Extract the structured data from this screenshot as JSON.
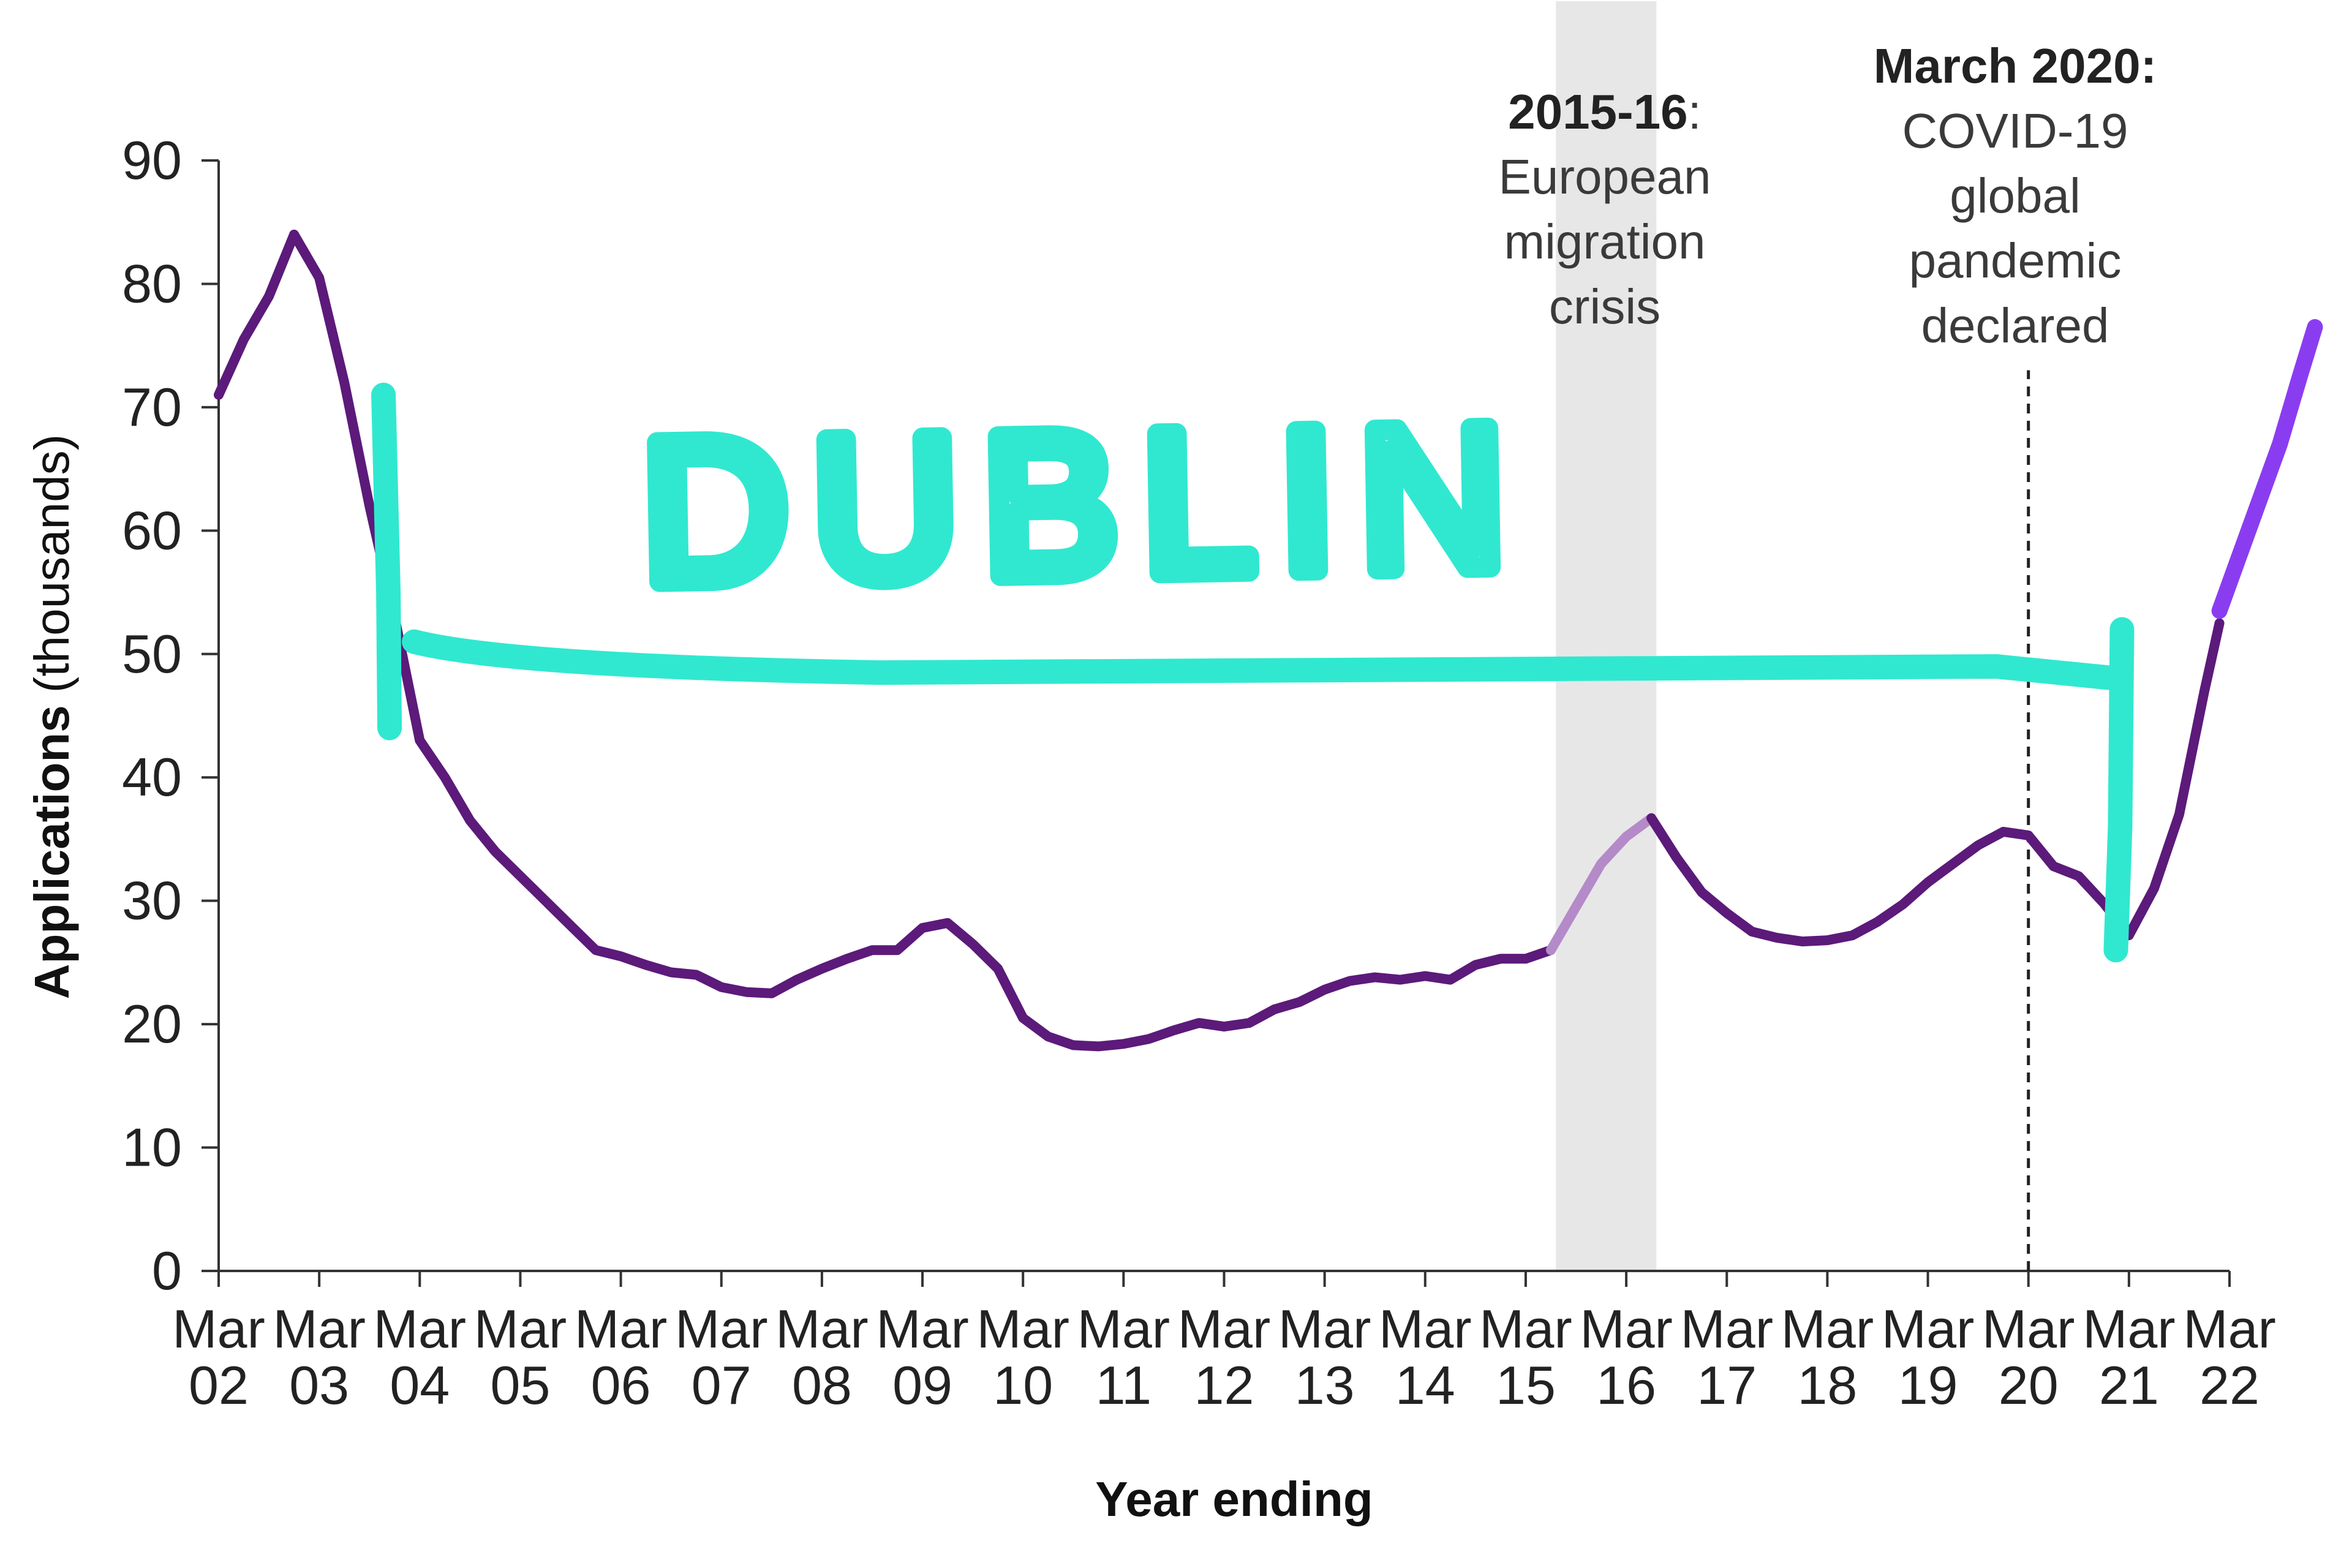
{
  "chart_data": {
    "type": "line",
    "xlabel": "Year ending",
    "ylabel": "Applications",
    "ylabel_unit": "(thousands)",
    "ylim": [
      0,
      90
    ],
    "yticks": [
      0,
      10,
      20,
      30,
      40,
      50,
      60,
      70,
      80,
      90
    ],
    "xticks": [
      {
        "line1": "Mar",
        "line2": "02",
        "x": 2002
      },
      {
        "line1": "Mar",
        "line2": "03",
        "x": 2003
      },
      {
        "line1": "Mar",
        "line2": "04",
        "x": 2004
      },
      {
        "line1": "Mar",
        "line2": "05",
        "x": 2005
      },
      {
        "line1": "Mar",
        "line2": "06",
        "x": 2006
      },
      {
        "line1": "Mar",
        "line2": "07",
        "x": 2007
      },
      {
        "line1": "Mar",
        "line2": "08",
        "x": 2008
      },
      {
        "line1": "Mar",
        "line2": "09",
        "x": 2009
      },
      {
        "line1": "Mar",
        "line2": "10",
        "x": 2010
      },
      {
        "line1": "Mar",
        "line2": "11",
        "x": 2011
      },
      {
        "line1": "Mar",
        "line2": "12",
        "x": 2012
      },
      {
        "line1": "Mar",
        "line2": "13",
        "x": 2013
      },
      {
        "line1": "Mar",
        "line2": "14",
        "x": 2014
      },
      {
        "line1": "Mar",
        "line2": "15",
        "x": 2015
      },
      {
        "line1": "Mar",
        "line2": "16",
        "x": 2016
      },
      {
        "line1": "Mar",
        "line2": "17",
        "x": 2017
      },
      {
        "line1": "Mar",
        "line2": "18",
        "x": 2018
      },
      {
        "line1": "Mar",
        "line2": "19",
        "x": 2019
      },
      {
        "line1": "Mar",
        "line2": "20",
        "x": 2020
      },
      {
        "line1": "Mar",
        "line2": "21",
        "x": 2021
      },
      {
        "line1": "Mar",
        "line2": "22",
        "x": 2022
      }
    ],
    "xlim": [
      2002,
      2022
    ],
    "series": [
      {
        "color": "#5c1a7a",
        "points": [
          [
            2002.0,
            71
          ],
          [
            2002.25,
            75.5
          ],
          [
            2002.5,
            79
          ],
          [
            2002.75,
            84
          ],
          [
            2003.0,
            80.5
          ],
          [
            2003.25,
            72
          ],
          [
            2003.5,
            62
          ],
          [
            2003.75,
            53
          ],
          [
            2004.0,
            43
          ],
          [
            2004.25,
            40
          ],
          [
            2004.5,
            36.5
          ],
          [
            2004.75,
            34
          ],
          [
            2005.0,
            32
          ],
          [
            2005.25,
            30
          ],
          [
            2005.5,
            28
          ],
          [
            2005.75,
            26
          ],
          [
            2006.0,
            25.5
          ],
          [
            2006.25,
            24.8
          ],
          [
            2006.5,
            24.2
          ],
          [
            2006.75,
            24
          ],
          [
            2007.0,
            23
          ],
          [
            2007.25,
            22.6
          ],
          [
            2007.5,
            22.5
          ],
          [
            2007.75,
            23.6
          ],
          [
            2008.0,
            24.5
          ],
          [
            2008.25,
            25.3
          ],
          [
            2008.5,
            26
          ],
          [
            2008.75,
            26
          ],
          [
            2009.0,
            27.8
          ],
          [
            2009.25,
            28.2
          ],
          [
            2009.5,
            26.5
          ],
          [
            2009.75,
            24.5
          ],
          [
            2010.0,
            20.5
          ],
          [
            2010.25,
            19
          ],
          [
            2010.5,
            18.3
          ],
          [
            2010.75,
            18.2
          ],
          [
            2011.0,
            18.4
          ],
          [
            2011.25,
            18.8
          ],
          [
            2011.5,
            19.5
          ],
          [
            2011.75,
            20.1
          ],
          [
            2012.0,
            19.8
          ],
          [
            2012.25,
            20.1
          ],
          [
            2012.5,
            21.2
          ],
          [
            2012.75,
            21.8
          ],
          [
            2013.0,
            22.8
          ],
          [
            2013.25,
            23.5
          ],
          [
            2013.5,
            23.8
          ],
          [
            2013.75,
            23.6
          ],
          [
            2014.0,
            23.9
          ],
          [
            2014.25,
            23.6
          ],
          [
            2014.5,
            24.8
          ],
          [
            2014.75,
            25.3
          ],
          [
            2015.0,
            25.3
          ],
          [
            2015.25,
            26
          ]
        ]
      },
      {
        "color": "#b48ac8",
        "points": [
          [
            2015.25,
            26
          ],
          [
            2015.5,
            29.5
          ],
          [
            2015.75,
            33
          ],
          [
            2016.0,
            35.2
          ],
          [
            2016.25,
            36.7
          ]
        ]
      },
      {
        "color": "#5c1a7a",
        "points": [
          [
            2016.25,
            36.7
          ],
          [
            2016.5,
            33.5
          ],
          [
            2016.75,
            30.7
          ],
          [
            2017.0,
            29
          ],
          [
            2017.25,
            27.5
          ],
          [
            2017.5,
            27
          ],
          [
            2017.75,
            26.7
          ],
          [
            2018.0,
            26.8
          ],
          [
            2018.25,
            27.2
          ],
          [
            2018.5,
            28.3
          ],
          [
            2018.75,
            29.7
          ],
          [
            2019.0,
            31.5
          ],
          [
            2019.25,
            33
          ],
          [
            2019.5,
            34.5
          ],
          [
            2019.75,
            35.6
          ],
          [
            2020.0,
            35.3
          ],
          [
            2020.25,
            32.8
          ],
          [
            2020.5,
            32
          ],
          [
            2020.75,
            29.8
          ],
          [
            2021.0,
            27.2
          ],
          [
            2021.25,
            31
          ],
          [
            2021.5,
            37
          ],
          [
            2021.75,
            47
          ],
          [
            2021.9,
            52.5
          ]
        ]
      },
      {
        "color": "#8a3df0",
        "points": [
          [
            2021.9,
            53.5
          ],
          [
            2022.1,
            58
          ],
          [
            2022.3,
            62.5
          ],
          [
            2022.5,
            67
          ],
          [
            2022.7,
            72.5
          ],
          [
            2022.85,
            76.5
          ]
        ]
      }
    ],
    "shaded_band": {
      "x0": 2015.3,
      "x1": 2016.3,
      "color": "#e7e7e7"
    },
    "event_line": {
      "x": 2020.0,
      "y0": 0,
      "y1": 73
    },
    "annotations": [
      {
        "bold": "2015-16",
        "boldSuffix": ":",
        "lines": [
          "European",
          "migration",
          "crisis"
        ]
      },
      {
        "bold": "March 2020:",
        "boldSuffix": "",
        "lines": [
          "COVID-19",
          "global",
          "pandemic",
          "declared"
        ]
      }
    ],
    "overlay": {
      "text": "DUBLIN",
      "color": "#30e8d0",
      "bracket_level": 48,
      "bracket_x0": 2003.7,
      "bracket_x1": 2020.9
    }
  }
}
